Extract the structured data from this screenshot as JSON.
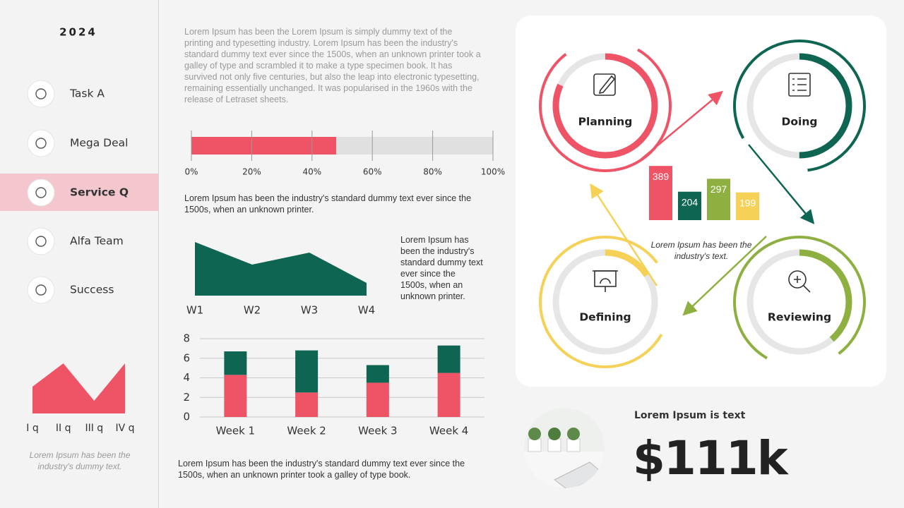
{
  "sidebar": {
    "year": "2024",
    "menu": [
      {
        "label": "Task A",
        "active": false
      },
      {
        "label": "Mega Deal",
        "active": false
      },
      {
        "label": "Service Q",
        "active": true
      },
      {
        "label": "Alfa Team",
        "active": false
      },
      {
        "label": "Success",
        "active": false
      }
    ],
    "note": "Lorem Ipsum has been the industry's dummy text."
  },
  "texts": {
    "intro": "Lorem Ipsum has been the Lorem Ipsum is simply dummy text of the printing and typesetting industry. Lorem Ipsum has been the industry's standard dummy text ever since the 1500s, when an unknown printer took a galley of type and scrambled it to make a type specimen book. It has survived not only five centuries, but also the leap into electronic typesetting, remaining essentially unchanged. It was popularised in the 1960s with the release of Letraset sheets.",
    "progress_caption": "Lorem Ipsum has been the industry's standard dummy text ever since the 1500s, when an unknown printer.",
    "area_caption": "Lorem Ipsum has been the industry's standard dummy text ever since the 1500s, when an unknown printer.",
    "stacked_caption": "Lorem Ipsum has been the industry's standard dummy text ever since the 1500s, when an unknown printer took a galley of type book.",
    "cycle_caption": "Lorem Ipsum has been the industry's text.",
    "kpi_label": "Lorem Ipsum is text",
    "kpi_value": "$111k"
  },
  "cycle": {
    "stages": [
      "Planning",
      "Doing",
      "Defining",
      "Reviewing"
    ]
  },
  "chart_data": [
    {
      "type": "bar",
      "horizontal": true,
      "values": [
        48
      ],
      "color": "#ef5466",
      "track_color": "#e0e0e0",
      "xlim": [
        0,
        100
      ],
      "xticks": [
        {
          "value": 0,
          "label": "0%"
        },
        {
          "value": 20,
          "label": "20%"
        },
        {
          "value": 40,
          "label": "40%"
        },
        {
          "value": 60,
          "label": "60%"
        },
        {
          "value": 80,
          "label": "80%"
        },
        {
          "value": 100,
          "label": "100%"
        }
      ],
      "grid": true
    },
    {
      "type": "area",
      "categories": [
        "W1",
        "W2",
        "W3",
        "W4"
      ],
      "values": [
        76,
        44,
        61,
        18
      ],
      "color": "#0e6652",
      "ylim": [
        0,
        80
      ]
    },
    {
      "type": "stacked_bar",
      "categories": [
        "Week 1",
        "Week 2",
        "Week 3",
        "Week 4"
      ],
      "series": [
        {
          "color": "#ef5466",
          "values": [
            4.3,
            2.5,
            3.5,
            4.5
          ]
        },
        {
          "color": "#0e6652",
          "values": [
            2.4,
            4.3,
            1.8,
            2.8
          ]
        }
      ],
      "ylim": [
        0,
        8
      ],
      "yticks": [
        0,
        2,
        4,
        6,
        8
      ],
      "grid": true
    },
    {
      "type": "bar",
      "values": [
        389,
        204,
        297,
        199
      ],
      "colors": [
        "#ef5466",
        "#0e6652",
        "#8db040",
        "#f5d157"
      ],
      "ylim": [
        0,
        400
      ]
    },
    {
      "type": "area",
      "categories": [
        "I q",
        "II q",
        "III q",
        "IV q"
      ],
      "values": [
        38,
        71,
        18,
        71
      ],
      "color": "#ef5466",
      "ylim": [
        0,
        80
      ]
    }
  ]
}
